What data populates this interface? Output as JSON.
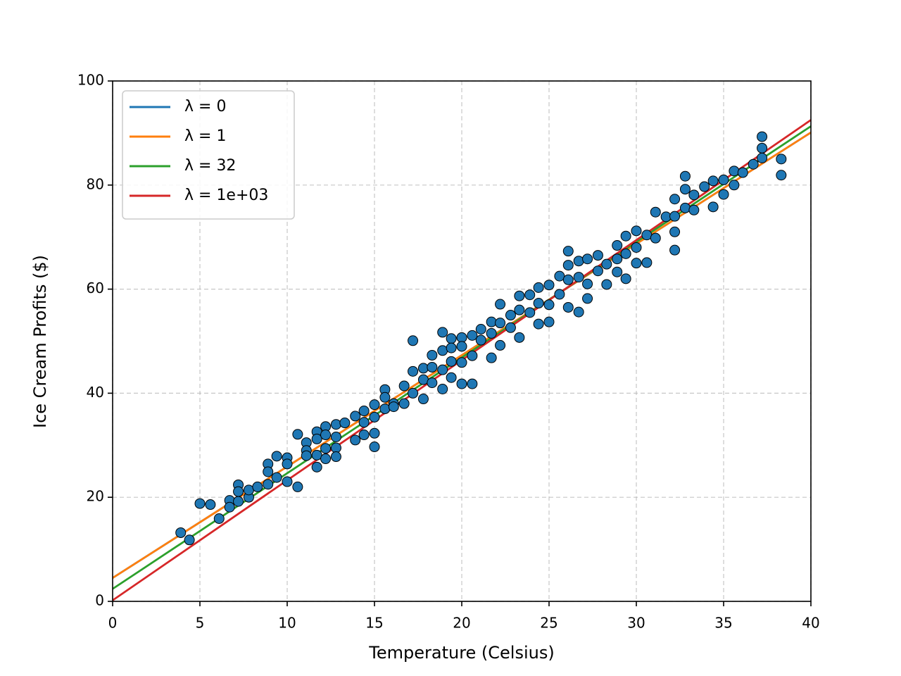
{
  "chart_data": {
    "type": "scatter",
    "x_label": "Temperature (Celsius)",
    "y_label": "Ice Cream Profits ($)",
    "xlim": [
      0,
      40
    ],
    "ylim": [
      0,
      100
    ],
    "xticks": [
      0,
      5,
      10,
      15,
      20,
      25,
      30,
      35,
      40
    ],
    "yticks": [
      0,
      20,
      40,
      60,
      80,
      100
    ],
    "grid": true,
    "legend": "upper-left",
    "scatter": {
      "color": "#1f77b4",
      "x": [
        3.9,
        4.4,
        5,
        5.6,
        6.1,
        6.7,
        6.7,
        7.2,
        7.2,
        7.2,
        7.8,
        7.8,
        8.3,
        8.9,
        8.9,
        8.9,
        9.4,
        9.4,
        10,
        10,
        10,
        10.6,
        10.6,
        11.1,
        11.1,
        11.1,
        11.7,
        11.7,
        11.7,
        11.7,
        12.2,
        12.2,
        12.2,
        12.2,
        12.8,
        12.8,
        12.8,
        12.8,
        13.3,
        13.9,
        13.9,
        14.4,
        14.4,
        14.4,
        15,
        15,
        15,
        15,
        15.6,
        15.6,
        15.6,
        16.1,
        16.1,
        16.7,
        16.7,
        17.2,
        17.2,
        17.2,
        17.8,
        17.8,
        17.8,
        18.3,
        18.3,
        18.3,
        18.9,
        18.9,
        18.9,
        18.9,
        19.4,
        19.4,
        19.4,
        19.4,
        20,
        20,
        20,
        20,
        20.6,
        20.6,
        20.6,
        21.1,
        21.1,
        21.7,
        21.7,
        21.7,
        22.2,
        22.2,
        22.2,
        22.8,
        22.8,
        23.3,
        23.3,
        23.3,
        23.9,
        23.9,
        24.4,
        24.4,
        24.4,
        25,
        25,
        25,
        25.6,
        25.6,
        26.1,
        26.1,
        26.1,
        26.1,
        26.7,
        26.7,
        26.7,
        27.2,
        27.2,
        27.2,
        27.8,
        27.8,
        28.3,
        28.3,
        28.9,
        28.9,
        28.9,
        29.4,
        29.4,
        29.4,
        30,
        30,
        30,
        30.6,
        30.6,
        31.1,
        31.1,
        31.7,
        32.2,
        32.2,
        32.2,
        32.2,
        32.8,
        32.8,
        32.8,
        33.3,
        33.3,
        33.9,
        34.4,
        34.4,
        35,
        35,
        35.6,
        35.6,
        36.1,
        36.7,
        37.2,
        37.2,
        37.2,
        38.3,
        38.3
      ],
      "y": [
        13.2,
        11.8,
        18.8,
        18.6,
        15.9,
        19.4,
        18.1,
        22.4,
        21.1,
        19.2,
        20.0,
        21.4,
        22.0,
        26.4,
        24.9,
        22.5,
        27.9,
        23.8,
        27.6,
        26.4,
        23.0,
        32.1,
        22.0,
        30.5,
        29.0,
        28.0,
        32.6,
        31.2,
        28.1,
        25.8,
        33.6,
        32.0,
        29.4,
        27.4,
        34.0,
        31.6,
        29.5,
        27.8,
        34.3,
        35.6,
        31.0,
        36.6,
        34.4,
        32.0,
        37.8,
        35.4,
        32.3,
        29.7,
        40.7,
        39.2,
        37.0,
        38.0,
        37.4,
        41.4,
        38.0,
        50.1,
        44.2,
        40.0,
        44.8,
        42.6,
        38.9,
        47.3,
        45.0,
        42.0,
        51.7,
        48.2,
        44.5,
        40.8,
        50.5,
        48.7,
        46.1,
        43.0,
        50.7,
        49.0,
        45.9,
        41.8,
        51.1,
        47.2,
        41.8,
        52.3,
        50.2,
        53.7,
        51.5,
        46.8,
        57.1,
        53.5,
        49.2,
        55.0,
        52.6,
        58.7,
        56.0,
        50.7,
        58.9,
        55.5,
        60.3,
        57.3,
        53.3,
        60.8,
        57.0,
        53.7,
        62.5,
        59.0,
        67.3,
        64.6,
        61.8,
        56.5,
        65.4,
        62.3,
        55.6,
        65.8,
        61.0,
        58.2,
        66.5,
        63.5,
        64.8,
        60.9,
        68.4,
        65.8,
        63.3,
        70.2,
        66.8,
        62.0,
        71.2,
        68.0,
        65.0,
        70.4,
        65.1,
        74.8,
        69.8,
        73.9,
        77.3,
        74.0,
        71.0,
        67.5,
        81.7,
        79.2,
        75.6,
        78.1,
        75.2,
        79.7,
        80.8,
        75.8,
        81.0,
        78.2,
        82.7,
        80.0,
        82.4,
        84.0,
        89.3,
        87.1,
        85.2,
        85.0,
        81.9
      ]
    },
    "lines": [
      {
        "name": "λ = 0",
        "color": "#1f77b4",
        "x": [
          0,
          40
        ],
        "y": [
          4.5,
          90.1
        ]
      },
      {
        "name": "λ = 1",
        "color": "#ff7f0e",
        "x": [
          0,
          40
        ],
        "y": [
          4.5,
          90.1
        ]
      },
      {
        "name": "λ = 32",
        "color": "#2ca02c",
        "x": [
          0,
          40
        ],
        "y": [
          2.4,
          91.3
        ]
      },
      {
        "name": "λ = 1e+03",
        "color": "#d62728",
        "x": [
          0,
          40
        ],
        "y": [
          0.2,
          92.5
        ]
      }
    ]
  }
}
